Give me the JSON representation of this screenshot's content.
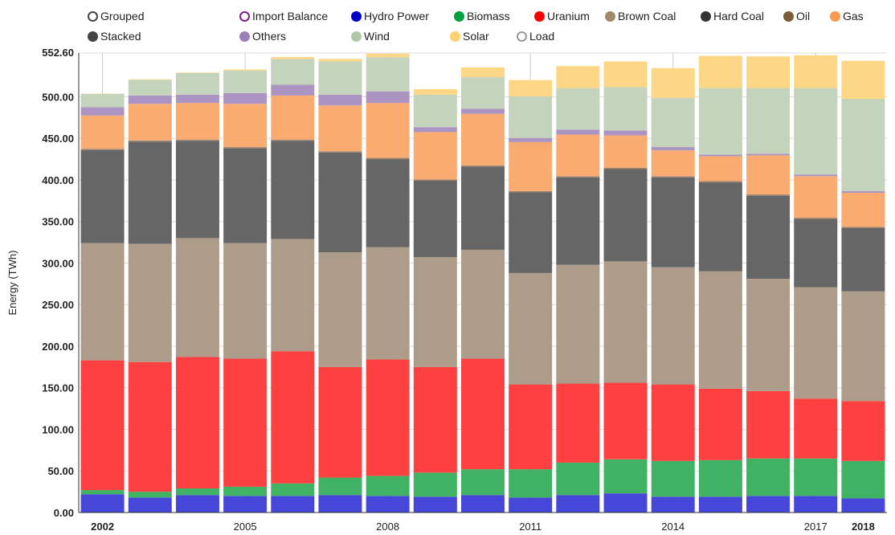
{
  "controls": {
    "grouped": "Grouped",
    "stacked": "Stacked"
  },
  "chart_data": {
    "type": "bar",
    "stacked": true,
    "ylabel": "Energy (TWh)",
    "xlabel": "",
    "ylim": [
      0,
      552.6
    ],
    "ymax_label": "552.60",
    "yticks": [
      "0.00",
      "50.00",
      "100.00",
      "150.00",
      "200.00",
      "250.00",
      "300.00",
      "350.00",
      "400.00",
      "450.00",
      "500.00"
    ],
    "categories": [
      "2002",
      "2003",
      "2004",
      "2005",
      "2006",
      "2007",
      "2008",
      "2009",
      "2010",
      "2011",
      "2012",
      "2013",
      "2014",
      "2015",
      "2016",
      "2017",
      "2018"
    ],
    "xtick_labels": [
      {
        "year": "2002",
        "bold": true
      },
      {
        "year": "2005",
        "bold": false
      },
      {
        "year": "2008",
        "bold": false
      },
      {
        "year": "2011",
        "bold": false
      },
      {
        "year": "2014",
        "bold": false
      },
      {
        "year": "2017",
        "bold": false
      },
      {
        "year": "2018",
        "bold": true
      }
    ],
    "legend": [
      {
        "name": "Import Balance",
        "color": "#7a1f8a",
        "hollow": true
      },
      {
        "name": "Hydro Power",
        "color": "#0000cc"
      },
      {
        "name": "Biomass",
        "color": "#00a03c"
      },
      {
        "name": "Uranium",
        "color": "#ff0000"
      },
      {
        "name": "Brown Coal",
        "color": "#a08868"
      },
      {
        "name": "Hard Coal",
        "color": "#333333"
      },
      {
        "name": "Oil",
        "color": "#7a5c3a"
      },
      {
        "name": "Gas",
        "color": "#f99a50"
      },
      {
        "name": "Others",
        "color": "#9a80b8"
      },
      {
        "name": "Wind",
        "color": "#b0c8a8"
      },
      {
        "name": "Solar",
        "color": "#fdd070"
      },
      {
        "name": "Load",
        "color": "#999999",
        "hollow": true
      }
    ],
    "series": [
      {
        "name": "Hydro Power",
        "color": "#4646d8",
        "values": [
          22,
          18,
          21,
          20,
          20,
          21,
          20,
          19,
          21,
          18,
          21,
          23,
          19,
          19,
          20,
          20,
          17
        ]
      },
      {
        "name": "Biomass",
        "color": "#40b264",
        "values": [
          5,
          7,
          8,
          11,
          15,
          21,
          24,
          29,
          31,
          34,
          39,
          41,
          43,
          44,
          45,
          45,
          45
        ]
      },
      {
        "name": "Uranium",
        "color": "#ff4040",
        "values": [
          156,
          156,
          158,
          154,
          159,
          133,
          140,
          127,
          133,
          102,
          95,
          92,
          92,
          86,
          81,
          72,
          72
        ]
      },
      {
        "name": "Brown Coal",
        "color": "#ae9c8a",
        "values": [
          141,
          142,
          143,
          139,
          135,
          138,
          135,
          132,
          131,
          134,
          143,
          146,
          141,
          141,
          135,
          134,
          132
        ]
      },
      {
        "name": "Hard Coal",
        "color": "#666666",
        "values": [
          112,
          123,
          117,
          114,
          118,
          120,
          106,
          92,
          100,
          97,
          105,
          111,
          108,
          107,
          100,
          82,
          76
        ]
      },
      {
        "name": "Oil",
        "color": "#9c8470",
        "values": [
          1.5,
          1.5,
          1.5,
          1.5,
          1.5,
          1.5,
          1.5,
          1.5,
          1.5,
          1.5,
          1.5,
          1.5,
          1.5,
          1.5,
          1.5,
          1.5,
          1.5
        ]
      },
      {
        "name": "Gas",
        "color": "#f9ab70",
        "values": [
          40,
          44,
          44,
          52,
          53,
          55,
          66,
          57,
          62,
          59,
          50,
          39,
          31,
          30,
          47,
          50,
          41
        ]
      },
      {
        "name": "Others",
        "color": "#ab94c2",
        "values": [
          10,
          10,
          10,
          13,
          13,
          13,
          14,
          6,
          6,
          5,
          6,
          6,
          4,
          2,
          2,
          2,
          2
        ]
      },
      {
        "name": "Wind",
        "color": "#c3d3bc",
        "values": [
          16,
          19,
          26,
          27,
          31,
          40,
          41,
          39,
          38,
          50,
          50,
          52,
          59,
          80,
          79,
          104,
          111
        ]
      },
      {
        "name": "Solar",
        "color": "#fdd785",
        "values": [
          0.3,
          0.5,
          0.6,
          1.3,
          2.2,
          3.1,
          4.4,
          6.6,
          11.7,
          19.6,
          26.4,
          31,
          36,
          38.7,
          38.1,
          39.4,
          45.8
        ]
      }
    ]
  }
}
